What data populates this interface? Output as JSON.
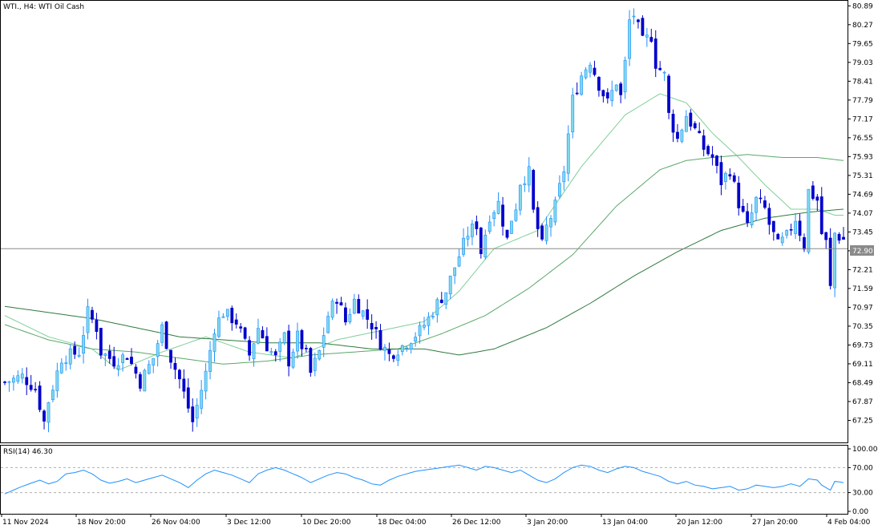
{
  "header": {
    "title": "WTI., H4:  WTI Oil Cash"
  },
  "colors": {
    "up_candle": "#1e90ff",
    "down_candle": "#0000cd",
    "bull_fill": "#7fd8ec",
    "ma_fast": "#7fcf9a",
    "ma_slow": "#2f7a3f",
    "ma_mid": "#5aa86a",
    "rsi_line": "#1e90ff",
    "price_line": "#8a8a8a",
    "price_tag_bg": "#8a8a8a"
  },
  "chart_data": {
    "type": "candlestick",
    "symbol": "WTI.",
    "timeframe": "H4",
    "instrument": "WTI Oil Cash",
    "current_price": "72.90",
    "y_ticks": [
      "80.89",
      "80.27",
      "79.65",
      "79.03",
      "78.41",
      "77.79",
      "77.17",
      "76.55",
      "75.93",
      "75.31",
      "74.69",
      "74.07",
      "73.45",
      "72.83",
      "72.21",
      "71.59",
      "70.97",
      "70.35",
      "69.73",
      "69.11",
      "68.49",
      "67.87",
      "67.25"
    ],
    "x_ticks": [
      "11 Nov 2024",
      "18 Nov 20:00",
      "26 Nov 04:00",
      "3 Dec 12:00",
      "10 Dec 20:00",
      "18 Dec 04:00",
      "26 Dec 12:00",
      "3 Jan 20:00",
      "13 Jan 04:00",
      "20 Jan 12:00",
      "27 Jan 20:00",
      "4 Feb 04:00"
    ],
    "ylim": [
      66.55,
      81.03
    ],
    "close_path": [
      [
        0,
        68.5
      ],
      [
        4,
        68.7
      ],
      [
        7,
        68.3
      ],
      [
        9,
        67.2
      ],
      [
        10,
        67.9
      ],
      [
        13,
        69.3
      ],
      [
        17,
        69.5
      ],
      [
        19,
        70.8
      ],
      [
        21,
        70.3
      ],
      [
        22,
        69.5
      ],
      [
        25,
        69.2
      ],
      [
        28,
        69.4
      ],
      [
        31,
        68.5
      ],
      [
        34,
        69.3
      ],
      [
        36,
        70.3
      ],
      [
        38,
        69.3
      ],
      [
        40,
        68.6
      ],
      [
        43,
        67.2
      ],
      [
        46,
        68.8
      ],
      [
        48,
        70.3
      ],
      [
        50,
        70.8
      ],
      [
        53,
        70.5
      ],
      [
        56,
        69.4
      ],
      [
        58,
        70.3
      ],
      [
        60,
        69.7
      ],
      [
        62,
        69.3
      ],
      [
        64,
        70.0
      ],
      [
        65,
        69.2
      ],
      [
        67,
        70.0
      ],
      [
        69,
        69.4
      ],
      [
        70,
        68.8
      ],
      [
        72,
        69.5
      ],
      [
        74,
        70.7
      ],
      [
        76,
        71.3
      ],
      [
        78,
        70.5
      ],
      [
        80,
        71.2
      ],
      [
        82,
        70.8
      ],
      [
        84,
        70.4
      ],
      [
        86,
        69.8
      ],
      [
        88,
        69.4
      ],
      [
        91,
        69.7
      ],
      [
        95,
        70.2
      ],
      [
        97,
        70.6
      ],
      [
        99,
        71.1
      ],
      [
        101,
        71.5
      ],
      [
        103,
        72.3
      ],
      [
        106,
        73.4
      ],
      [
        108,
        73.7
      ],
      [
        109,
        72.8
      ],
      [
        111,
        74.0
      ],
      [
        113,
        74.4
      ],
      [
        115,
        73.2
      ],
      [
        116,
        73.9
      ],
      [
        117,
        74.3
      ],
      [
        118,
        75.1
      ],
      [
        120,
        75.4
      ],
      [
        121,
        74.1
      ],
      [
        123,
        73.0
      ],
      [
        124,
        73.6
      ],
      [
        126,
        74.3
      ],
      [
        128,
        75.5
      ],
      [
        130,
        77.8
      ],
      [
        132,
        78.6
      ],
      [
        134,
        79.1
      ],
      [
        136,
        78.3
      ],
      [
        138,
        77.7
      ],
      [
        140,
        78.4
      ],
      [
        141,
        77.9
      ],
      [
        142,
        79.0
      ],
      [
        143,
        80.4
      ],
      [
        144,
        80.6
      ],
      [
        146,
        79.7
      ],
      [
        148,
        79.9
      ],
      [
        149,
        79.0
      ],
      [
        151,
        78.6
      ],
      [
        152,
        77.3
      ],
      [
        154,
        76.5
      ],
      [
        156,
        77.3
      ],
      [
        158,
        76.8
      ],
      [
        160,
        76.2
      ],
      [
        162,
        75.9
      ],
      [
        164,
        75.1
      ],
      [
        166,
        75.5
      ],
      [
        168,
        74.4
      ],
      [
        170,
        73.6
      ],
      [
        172,
        74.5
      ],
      [
        174,
        74.2
      ],
      [
        175,
        73.7
      ],
      [
        177,
        73.0
      ],
      [
        179,
        73.3
      ],
      [
        181,
        73.9
      ],
      [
        183,
        73.0
      ],
      [
        184,
        74.8
      ],
      [
        186,
        74.5
      ],
      [
        187,
        73.4
      ],
      [
        188,
        73.1
      ],
      [
        189,
        71.6
      ],
      [
        190,
        73.4
      ],
      [
        192,
        73.2
      ]
    ],
    "ma_fast": [
      [
        0,
        70.7
      ],
      [
        10,
        70.0
      ],
      [
        20,
        69.6
      ],
      [
        26,
        68.9
      ],
      [
        36,
        69.5
      ],
      [
        46,
        70.0
      ],
      [
        56,
        69.5
      ],
      [
        66,
        69.3
      ],
      [
        76,
        69.9
      ],
      [
        86,
        70.2
      ],
      [
        96,
        70.5
      ],
      [
        104,
        71.5
      ],
      [
        112,
        72.9
      ],
      [
        122,
        73.5
      ],
      [
        132,
        75.6
      ],
      [
        142,
        77.3
      ],
      [
        150,
        78.0
      ],
      [
        156,
        77.7
      ],
      [
        162,
        76.7
      ],
      [
        168,
        75.9
      ],
      [
        174,
        75.0
      ],
      [
        180,
        74.2
      ],
      [
        186,
        74.2
      ],
      [
        190,
        74.0
      ]
    ],
    "ma_mid": [
      [
        0,
        70.4
      ],
      [
        10,
        69.9
      ],
      [
        20,
        69.6
      ],
      [
        30,
        69.5
      ],
      [
        40,
        69.3
      ],
      [
        50,
        69.1
      ],
      [
        60,
        69.2
      ],
      [
        70,
        69.4
      ],
      [
        80,
        69.5
      ],
      [
        90,
        69.6
      ],
      [
        100,
        70.1
      ],
      [
        110,
        70.7
      ],
      [
        120,
        71.6
      ],
      [
        130,
        72.7
      ],
      [
        140,
        74.3
      ],
      [
        150,
        75.5
      ],
      [
        156,
        75.8
      ],
      [
        162,
        75.9
      ],
      [
        170,
        76.0
      ],
      [
        178,
        75.9
      ],
      [
        186,
        75.9
      ],
      [
        192,
        75.8
      ]
    ],
    "ma_slow": [
      [
        0,
        71.0
      ],
      [
        20,
        70.6
      ],
      [
        40,
        70.0
      ],
      [
        60,
        69.8
      ],
      [
        72,
        69.8
      ],
      [
        84,
        69.6
      ],
      [
        96,
        69.6
      ],
      [
        104,
        69.4
      ],
      [
        112,
        69.6
      ],
      [
        124,
        70.3
      ],
      [
        134,
        71.1
      ],
      [
        144,
        72.0
      ],
      [
        154,
        72.8
      ],
      [
        164,
        73.5
      ],
      [
        174,
        73.9
      ],
      [
        184,
        74.1
      ],
      [
        192,
        74.2
      ]
    ],
    "rsi": {
      "label": "RSI(14) 46.30",
      "levels": [
        "100.00",
        "70.00",
        "30.00",
        "0.00"
      ],
      "values": [
        [
          0,
          28
        ],
        [
          4,
          40
        ],
        [
          8,
          50
        ],
        [
          10,
          44
        ],
        [
          12,
          48
        ],
        [
          14,
          60
        ],
        [
          16,
          62
        ],
        [
          18,
          66
        ],
        [
          20,
          60
        ],
        [
          22,
          50
        ],
        [
          24,
          45
        ],
        [
          26,
          48
        ],
        [
          28,
          52
        ],
        [
          30,
          46
        ],
        [
          32,
          50
        ],
        [
          34,
          54
        ],
        [
          36,
          58
        ],
        [
          38,
          52
        ],
        [
          40,
          46
        ],
        [
          42,
          38
        ],
        [
          44,
          50
        ],
        [
          46,
          60
        ],
        [
          48,
          66
        ],
        [
          50,
          62
        ],
        [
          52,
          58
        ],
        [
          54,
          52
        ],
        [
          56,
          46
        ],
        [
          58,
          60
        ],
        [
          60,
          66
        ],
        [
          62,
          70
        ],
        [
          64,
          66
        ],
        [
          66,
          60
        ],
        [
          68,
          54
        ],
        [
          70,
          46
        ],
        [
          72,
          52
        ],
        [
          74,
          58
        ],
        [
          76,
          62
        ],
        [
          78,
          60
        ],
        [
          80,
          54
        ],
        [
          82,
          50
        ],
        [
          84,
          44
        ],
        [
          86,
          42
        ],
        [
          88,
          50
        ],
        [
          90,
          56
        ],
        [
          92,
          60
        ],
        [
          94,
          64
        ],
        [
          96,
          66
        ],
        [
          98,
          68
        ],
        [
          100,
          70
        ],
        [
          102,
          72
        ],
        [
          104,
          74
        ],
        [
          106,
          70
        ],
        [
          108,
          66
        ],
        [
          110,
          72
        ],
        [
          112,
          70
        ],
        [
          114,
          66
        ],
        [
          116,
          62
        ],
        [
          118,
          66
        ],
        [
          120,
          58
        ],
        [
          122,
          50
        ],
        [
          124,
          46
        ],
        [
          126,
          52
        ],
        [
          128,
          62
        ],
        [
          130,
          70
        ],
        [
          132,
          74
        ],
        [
          134,
          72
        ],
        [
          136,
          66
        ],
        [
          138,
          62
        ],
        [
          140,
          68
        ],
        [
          142,
          72
        ],
        [
          144,
          70
        ],
        [
          146,
          64
        ],
        [
          148,
          60
        ],
        [
          150,
          56
        ],
        [
          152,
          48
        ],
        [
          154,
          44
        ],
        [
          156,
          48
        ],
        [
          158,
          42
        ],
        [
          160,
          40
        ],
        [
          162,
          36
        ],
        [
          164,
          38
        ],
        [
          166,
          40
        ],
        [
          168,
          34
        ],
        [
          170,
          36
        ],
        [
          172,
          42
        ],
        [
          174,
          40
        ],
        [
          176,
          38
        ],
        [
          178,
          40
        ],
        [
          180,
          44
        ],
        [
          182,
          40
        ],
        [
          184,
          52
        ],
        [
          186,
          50
        ],
        [
          187,
          42
        ],
        [
          188,
          38
        ],
        [
          189,
          34
        ],
        [
          190,
          48
        ],
        [
          192,
          46
        ]
      ]
    }
  }
}
